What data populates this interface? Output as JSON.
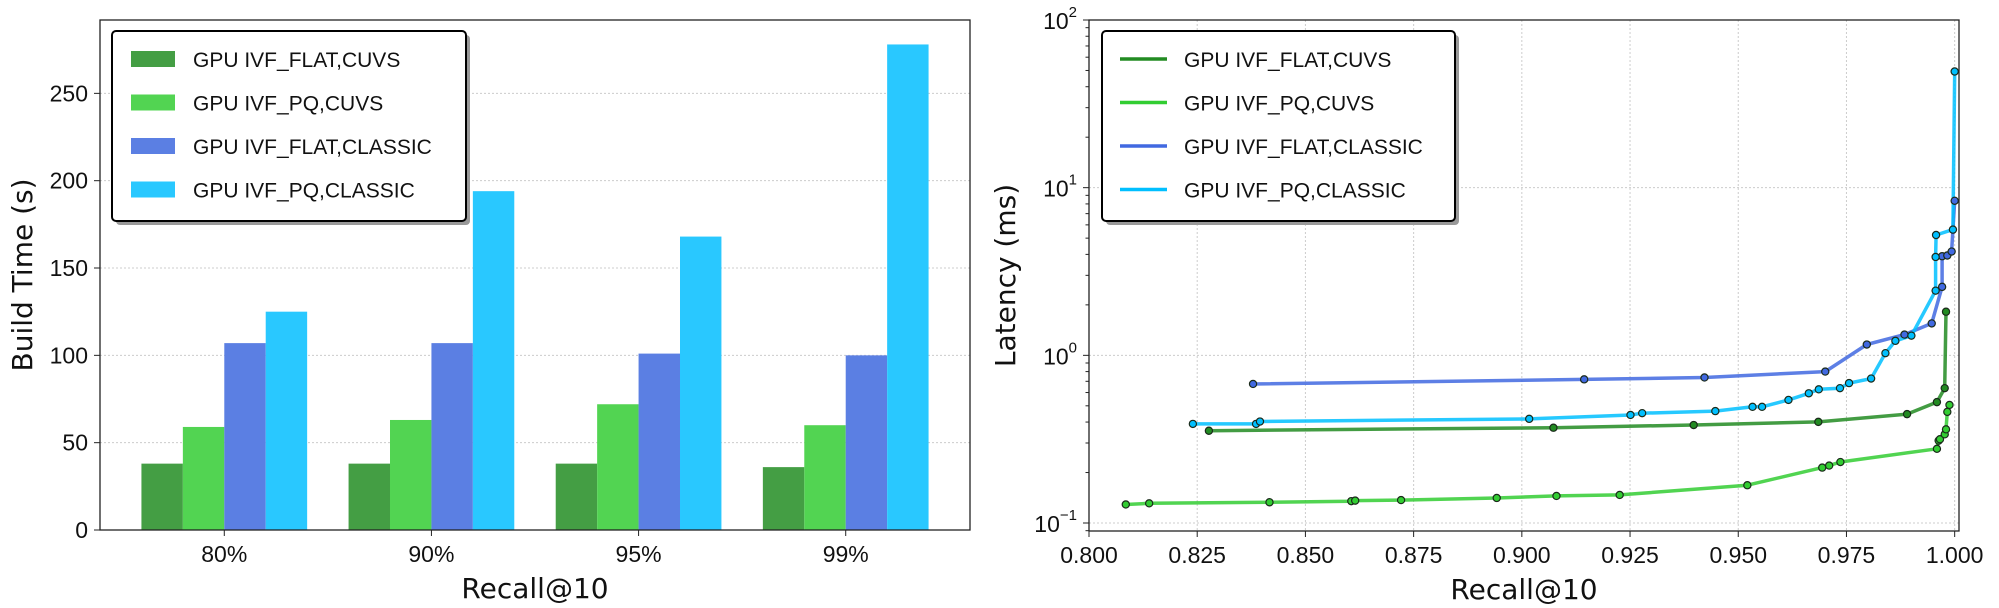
{
  "chart_data": [
    {
      "type": "bar",
      "xlabel": "Recall@10",
      "ylabel": "Build Time (s)",
      "categories": [
        "80%",
        "90%",
        "95%",
        "99%"
      ],
      "ylim": [
        0,
        292
      ],
      "yticks": [
        0,
        50,
        100,
        150,
        200,
        250
      ],
      "grid": true,
      "legend_position": "top-left",
      "series": [
        {
          "name": "GPU IVF_FLAT,CUVS",
          "color": "#449e44",
          "values": [
            38,
            38,
            38,
            36
          ]
        },
        {
          "name": "GPU IVF_PQ,CUVS",
          "color": "#52d452",
          "values": [
            59,
            63,
            72,
            60
          ]
        },
        {
          "name": "GPU IVF_FLAT,CLASSIC",
          "color": "#5b7fe3",
          "values": [
            107,
            107,
            101,
            100
          ]
        },
        {
          "name": "GPU IVF_PQ,CLASSIC",
          "color": "#29c8ff",
          "values": [
            125,
            194,
            168,
            278
          ]
        }
      ]
    },
    {
      "type": "line",
      "xlabel": "Recall@10",
      "ylabel": "Latency (ms)",
      "yscale": "log",
      "xlim": [
        0.8,
        1.001
      ],
      "ylim": [
        0.0896,
        100
      ],
      "xticks": [
        "0.800",
        "0.825",
        "0.850",
        "0.875",
        "0.900",
        "0.925",
        "0.950",
        "0.975",
        "1.000"
      ],
      "yticks": [
        {
          "base": "10",
          "exp": "2",
          "value": 100
        },
        {
          "base": "10",
          "exp": "1",
          "value": 10
        },
        {
          "base": "10",
          "exp": "0",
          "value": 1
        },
        {
          "base": "10",
          "exp": "−1",
          "value": 0.1
        }
      ],
      "grid": true,
      "legend_position": "top-left",
      "series": [
        {
          "name": "GPU IVF_FLAT,CUVS",
          "color": "#228b22",
          "x": [
            0.8277,
            0.9073,
            0.9397,
            0.9685,
            0.989,
            0.9959,
            0.9977,
            0.998
          ],
          "y": [
            0.355,
            0.37,
            0.384,
            0.401,
            0.446,
            0.526,
            0.637,
            1.82
          ]
        },
        {
          "name": "GPU IVF_PQ,CUVS",
          "color": "#32cd32",
          "x": [
            0.8085,
            0.8139,
            0.8417,
            0.8606,
            0.8615,
            0.8721,
            0.8942,
            0.908,
            0.9226,
            0.9521,
            0.9694,
            0.971,
            0.9736,
            0.9959,
            0.9963,
            0.9966,
            0.9977,
            0.998,
            0.9983,
            0.9988
          ],
          "y": [
            0.129,
            0.131,
            0.133,
            0.135,
            0.136,
            0.137,
            0.141,
            0.145,
            0.147,
            0.168,
            0.214,
            0.22,
            0.231,
            0.277,
            0.31,
            0.316,
            0.338,
            0.362,
            0.46,
            0.506
          ]
        },
        {
          "name": "GPU IVF_FLAT,CLASSIC",
          "color": "#4169e1",
          "x": [
            0.8379,
            0.9144,
            0.9422,
            0.9701,
            0.9797,
            0.9884,
            0.9947,
            0.9971,
            0.9971,
            0.9983,
            0.9993,
            1.0
          ],
          "y": [
            0.675,
            0.719,
            0.738,
            0.8,
            1.16,
            1.33,
            1.55,
            2.56,
            3.9,
            3.94,
            4.16,
            8.35
          ]
        },
        {
          "name": "GPU IVF_PQ,CLASSIC",
          "color": "#00bfff",
          "x": [
            0.824,
            0.8386,
            0.8395,
            0.9017,
            0.9251,
            0.9278,
            0.9447,
            0.9533,
            0.9555,
            0.9616,
            0.9663,
            0.9686,
            0.9735,
            0.9756,
            0.9807,
            0.984,
            0.9863,
            0.99,
            0.9956,
            0.9956,
            0.9957,
            0.9996,
            1.0
          ],
          "y": [
            0.39,
            0.39,
            0.403,
            0.418,
            0.441,
            0.452,
            0.465,
            0.493,
            0.493,
            0.542,
            0.594,
            0.627,
            0.637,
            0.683,
            0.727,
            1.03,
            1.22,
            1.31,
            2.43,
            3.86,
            5.22,
            5.62,
            49.3
          ]
        }
      ]
    }
  ]
}
